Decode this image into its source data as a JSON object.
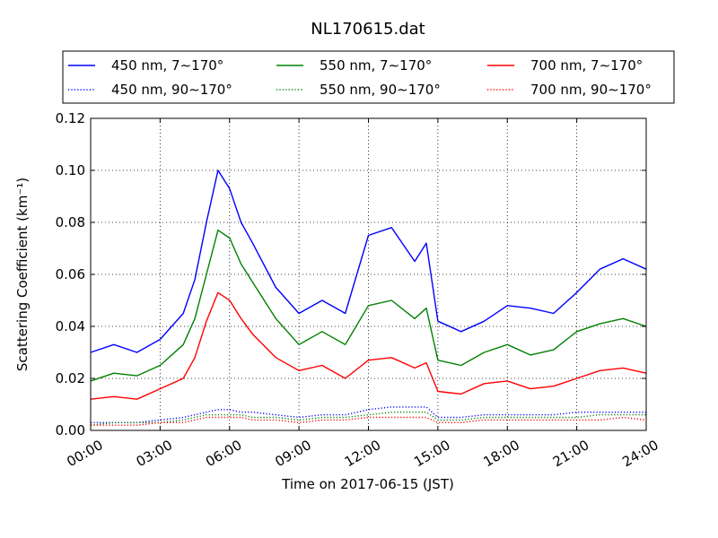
{
  "chart_data": {
    "type": "line",
    "title": "NL170615.dat",
    "xlabel": "Time on 2017-06-15 (JST)",
    "ylabel": "Scattering Coefficient (km⁻¹)",
    "xlim": [
      "00:00",
      "24:00"
    ],
    "ylim": [
      0.0,
      0.12
    ],
    "grid": true,
    "legend_position": "top",
    "x_ticks": [
      "00:00",
      "03:00",
      "06:00",
      "09:00",
      "12:00",
      "15:00",
      "18:00",
      "21:00",
      "24:00"
    ],
    "y_ticks": [
      "0.00",
      "0.02",
      "0.04",
      "0.06",
      "0.08",
      "0.10",
      "0.12"
    ],
    "x": [
      "00:00",
      "01:00",
      "02:00",
      "03:00",
      "04:00",
      "04:30",
      "05:00",
      "05:30",
      "06:00",
      "06:30",
      "07:00",
      "08:00",
      "09:00",
      "10:00",
      "11:00",
      "12:00",
      "13:00",
      "14:00",
      "14:30",
      "15:00",
      "16:00",
      "17:00",
      "18:00",
      "19:00",
      "20:00",
      "21:00",
      "22:00",
      "23:00",
      "24:00"
    ],
    "series": [
      {
        "name": "450 nm, 7∼170°",
        "color": "#0000ff",
        "style": "solid",
        "values": [
          0.03,
          0.033,
          0.03,
          0.035,
          0.045,
          0.058,
          0.08,
          0.1,
          0.093,
          0.08,
          0.072,
          0.055,
          0.045,
          0.05,
          0.045,
          0.075,
          0.078,
          0.065,
          0.072,
          0.042,
          0.038,
          0.042,
          0.048,
          0.047,
          0.045,
          0.053,
          0.062,
          0.066,
          0.062
        ]
      },
      {
        "name": "450 nm, 90∼170°",
        "color": "#0000ff",
        "style": "dotted",
        "values": [
          0.003,
          0.003,
          0.003,
          0.004,
          0.005,
          0.006,
          0.007,
          0.008,
          0.008,
          0.007,
          0.007,
          0.006,
          0.005,
          0.006,
          0.006,
          0.008,
          0.009,
          0.009,
          0.009,
          0.005,
          0.005,
          0.006,
          0.006,
          0.006,
          0.006,
          0.007,
          0.007,
          0.007,
          0.007
        ]
      },
      {
        "name": "550 nm, 7∼170°",
        "color": "#008000",
        "style": "solid",
        "values": [
          0.019,
          0.022,
          0.021,
          0.025,
          0.033,
          0.043,
          0.06,
          0.077,
          0.074,
          0.064,
          0.057,
          0.043,
          0.033,
          0.038,
          0.033,
          0.048,
          0.05,
          0.043,
          0.047,
          0.027,
          0.025,
          0.03,
          0.033,
          0.029,
          0.031,
          0.038,
          0.041,
          0.043,
          0.04
        ]
      },
      {
        "name": "550 nm, 90∼170°",
        "color": "#008000",
        "style": "dotted",
        "values": [
          0.002,
          0.003,
          0.003,
          0.003,
          0.004,
          0.005,
          0.006,
          0.006,
          0.006,
          0.006,
          0.005,
          0.005,
          0.004,
          0.005,
          0.005,
          0.006,
          0.007,
          0.007,
          0.007,
          0.004,
          0.004,
          0.005,
          0.005,
          0.005,
          0.005,
          0.005,
          0.006,
          0.006,
          0.006
        ]
      },
      {
        "name": "700 nm, 7∼170°",
        "color": "#ff0000",
        "style": "solid",
        "values": [
          0.012,
          0.013,
          0.012,
          0.016,
          0.02,
          0.028,
          0.042,
          0.053,
          0.05,
          0.043,
          0.037,
          0.028,
          0.023,
          0.025,
          0.02,
          0.027,
          0.028,
          0.024,
          0.026,
          0.015,
          0.014,
          0.018,
          0.019,
          0.016,
          0.017,
          0.02,
          0.023,
          0.024,
          0.022
        ]
      },
      {
        "name": "700 nm, 90∼170°",
        "color": "#ff0000",
        "style": "dotted",
        "values": [
          0.002,
          0.002,
          0.002,
          0.003,
          0.003,
          0.004,
          0.005,
          0.005,
          0.005,
          0.005,
          0.004,
          0.004,
          0.003,
          0.004,
          0.004,
          0.005,
          0.005,
          0.005,
          0.005,
          0.003,
          0.003,
          0.004,
          0.004,
          0.004,
          0.004,
          0.004,
          0.004,
          0.005,
          0.004
        ]
      }
    ]
  }
}
